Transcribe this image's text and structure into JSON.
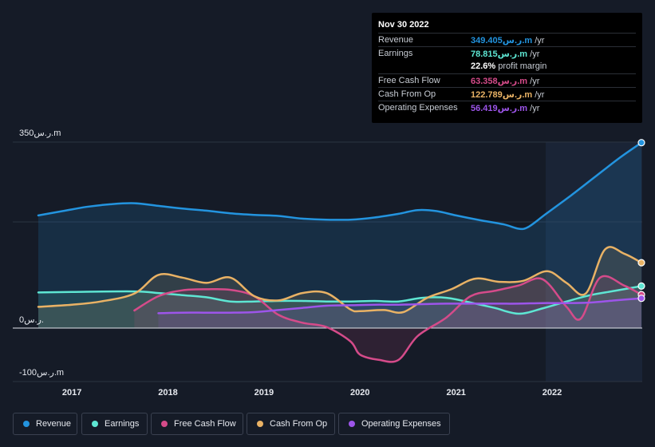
{
  "chart_data": {
    "type": "area",
    "title": "",
    "y_axis": {
      "top_label": "350ر.س.m",
      "zero_label": "0ر.س.",
      "bottom_label": "-100ر.س.m",
      "ylim": [
        -100,
        350
      ]
    },
    "x_axis": {
      "ticks": [
        "2017",
        "2018",
        "2019",
        "2020",
        "2021",
        "2022"
      ],
      "xlim": [
        2016.65,
        2022.93
      ]
    },
    "highlight_start": 2021.93,
    "series": [
      {
        "key": "revenue",
        "name": "Revenue",
        "color": "#2394df",
        "x": [
          2016.65,
          2016.9,
          2017.15,
          2017.4,
          2017.65,
          2017.9,
          2018.15,
          2018.4,
          2018.65,
          2018.9,
          2019.15,
          2019.4,
          2019.65,
          2019.9,
          2020.15,
          2020.4,
          2020.6,
          2020.8,
          2021.0,
          2021.25,
          2021.5,
          2021.65,
          2021.75,
          2021.93,
          2022.2,
          2022.45,
          2022.7,
          2022.93
        ],
        "y": [
          212,
          220,
          228,
          233,
          235,
          230,
          225,
          221,
          216,
          213,
          211,
          206,
          204,
          204,
          208,
          215,
          222,
          220,
          212,
          203,
          195,
          187,
          190,
          214,
          250,
          285,
          320,
          349
        ]
      },
      {
        "key": "earnings",
        "name": "Earnings",
        "color": "#5ee6d3",
        "x": [
          2016.65,
          2017.0,
          2017.65,
          2017.9,
          2018.15,
          2018.4,
          2018.65,
          2018.9,
          2019.15,
          2019.4,
          2019.65,
          2019.9,
          2020.15,
          2020.4,
          2020.65,
          2020.9,
          2021.15,
          2021.4,
          2021.65,
          2021.9,
          2022.15,
          2022.4,
          2022.65,
          2022.93
        ],
        "y": [
          67,
          68,
          69,
          66,
          62,
          58,
          50,
          50,
          51,
          51,
          50,
          50,
          51,
          50,
          57,
          57,
          48,
          38,
          27,
          37,
          50,
          62,
          70,
          79
        ]
      },
      {
        "key": "fcf",
        "name": "Free Cash Flow",
        "color": "#d54b8a",
        "x": [
          2017.65,
          2017.9,
          2018.15,
          2018.4,
          2018.65,
          2018.9,
          2019.15,
          2019.4,
          2019.65,
          2019.9,
          2020.0,
          2020.2,
          2020.4,
          2020.6,
          2020.9,
          2021.15,
          2021.4,
          2021.65,
          2021.9,
          2022.15,
          2022.3,
          2022.5,
          2022.75,
          2022.93
        ],
        "y": [
          33,
          60,
          71,
          73,
          72,
          60,
          25,
          10,
          2,
          -25,
          -50,
          -60,
          -60,
          -15,
          20,
          60,
          70,
          80,
          92,
          40,
          18,
          95,
          80,
          63
        ]
      },
      {
        "key": "cfo",
        "name": "Cash From Op",
        "color": "#e9b265",
        "x": [
          2016.65,
          2017.0,
          2017.3,
          2017.65,
          2017.9,
          2018.15,
          2018.4,
          2018.65,
          2018.9,
          2019.15,
          2019.4,
          2019.65,
          2019.9,
          2020.0,
          2020.25,
          2020.45,
          2020.7,
          2020.95,
          2021.2,
          2021.45,
          2021.7,
          2021.95,
          2022.15,
          2022.35,
          2022.55,
          2022.75,
          2022.93
        ],
        "y": [
          40,
          44,
          50,
          65,
          100,
          95,
          85,
          95,
          60,
          52,
          66,
          66,
          35,
          32,
          34,
          30,
          57,
          73,
          93,
          87,
          89,
          107,
          85,
          65,
          148,
          140,
          123
        ]
      },
      {
        "key": "opex",
        "name": "Operating Expenses",
        "color": "#9d55ea",
        "x": [
          2017.9,
          2018.15,
          2018.4,
          2018.65,
          2018.9,
          2019.15,
          2019.4,
          2019.65,
          2019.9,
          2020.15,
          2020.4,
          2020.65,
          2020.9,
          2021.15,
          2021.4,
          2021.65,
          2021.9,
          2022.15,
          2022.4,
          2022.65,
          2022.93
        ],
        "y": [
          28,
          29,
          29,
          29,
          30,
          34,
          38,
          42,
          43,
          44,
          44,
          45,
          46,
          46,
          46,
          46,
          47,
          47,
          48,
          52,
          56
        ]
      }
    ]
  },
  "tooltip": {
    "date": "Nov 30 2022",
    "rows": [
      {
        "label": "Revenue",
        "value": "349.405ر.س.m",
        "unit": " /yr",
        "color": "#2394df"
      },
      {
        "label": "Earnings",
        "value": "78.815ر.س.m",
        "unit": " /yr",
        "color": "#5ee6d3"
      },
      {
        "label": "",
        "value": "22.6%",
        "unit": " profit margin",
        "color": "#ffffff"
      },
      {
        "label": "Free Cash Flow",
        "value": "63.358ر.س.m",
        "unit": " /yr",
        "color": "#d54b8a"
      },
      {
        "label": "Cash From Op",
        "value": "122.789ر.س.m",
        "unit": " /yr",
        "color": "#e9b265"
      },
      {
        "label": "Operating Expenses",
        "value": "56.419ر.س.m",
        "unit": " /yr",
        "color": "#9d55ea"
      }
    ]
  },
  "legend": [
    {
      "label": "Revenue",
      "color": "#2394df"
    },
    {
      "label": "Earnings",
      "color": "#5ee6d3"
    },
    {
      "label": "Free Cash Flow",
      "color": "#d54b8a"
    },
    {
      "label": "Cash From Op",
      "color": "#e9b265"
    },
    {
      "label": "Operating Expenses",
      "color": "#9d55ea"
    }
  ]
}
